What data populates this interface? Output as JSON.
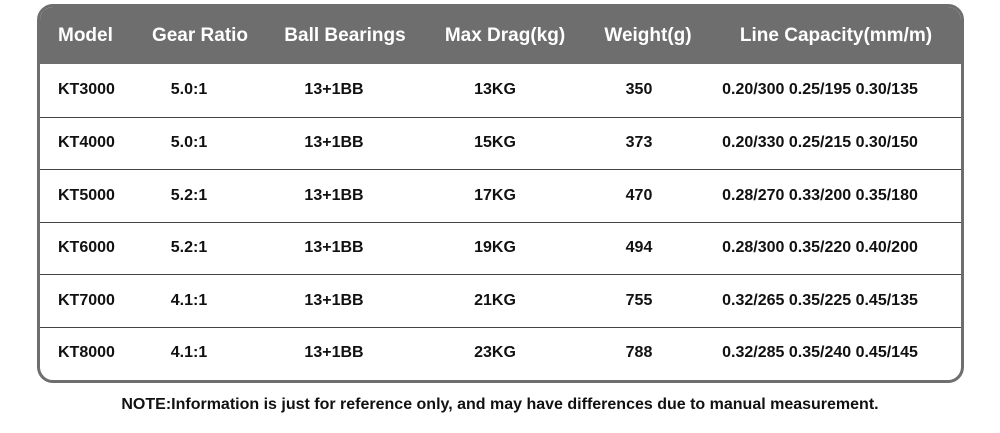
{
  "table": {
    "header": [
      "Model",
      "Gear Ratio",
      "Ball Bearings",
      "Max Drag(kg)",
      "Weight(g)",
      "Line Capacity(mm/m)"
    ],
    "rows": [
      [
        "KT3000",
        "5.0:1",
        "13+1BB",
        "13KG",
        "350",
        "0.20/300 0.25/195 0.30/135"
      ],
      [
        "KT4000",
        "5.0:1",
        "13+1BB",
        "15KG",
        "373",
        "0.20/330 0.25/215 0.30/150"
      ],
      [
        "KT5000",
        "5.2:1",
        "13+1BB",
        "17KG",
        "470",
        "0.28/270 0.33/200 0.35/180"
      ],
      [
        "KT6000",
        "5.2:1",
        "13+1BB",
        "19KG",
        "494",
        "0.28/300 0.35/220 0.40/200"
      ],
      [
        "KT7000",
        "4.1:1",
        "13+1BB",
        "21KG",
        "755",
        "0.32/265 0.35/225 0.45/135"
      ],
      [
        "KT8000",
        "4.1:1",
        "13+1BB",
        "23KG",
        "788",
        "0.32/285 0.35/240 0.45/145"
      ]
    ]
  },
  "note": "NOTE:Information is just for reference only, and may have differences due to manual measurement."
}
